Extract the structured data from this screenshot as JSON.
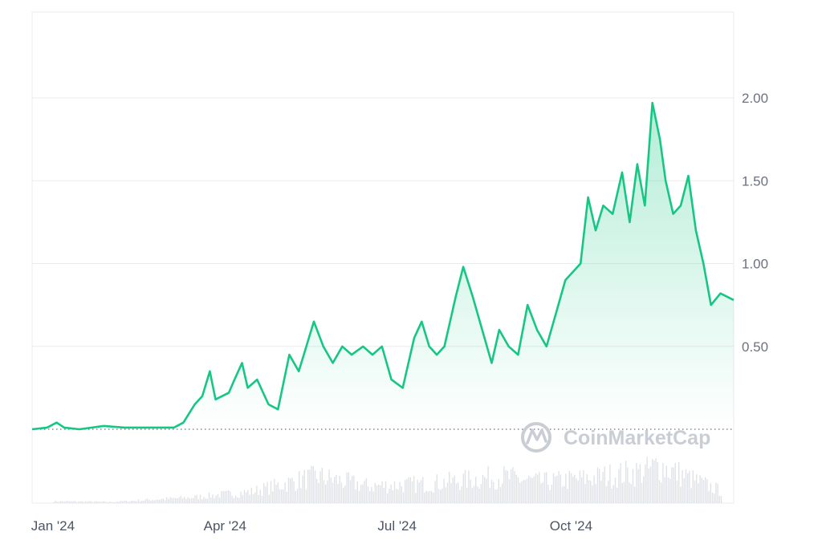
{
  "colors": {
    "line": "#16c784",
    "area_top": "#16c784",
    "grid": "#e9ebee",
    "baseline": "#6b7280",
    "volume": "#dfe2e7",
    "watermark": "#c9cdd4"
  },
  "watermark": {
    "text": "CoinMarketCap",
    "icon": "coinmarketcap-logo-icon"
  },
  "chart_data": {
    "type": "area",
    "title": "",
    "xlabel": "",
    "ylabel": "",
    "y_axis_side": "right",
    "ylim": [
      0,
      2.55
    ],
    "grid": true,
    "baseline_value": 0,
    "xlim": [
      "2023-12-21",
      "2024-12-26"
    ],
    "x_ticks": [
      {
        "label": "Jan '24",
        "date": "2024-01-01"
      },
      {
        "label": "Apr '24",
        "date": "2024-04-01"
      },
      {
        "label": "Jul '24",
        "date": "2024-07-01"
      },
      {
        "label": "Oct '24",
        "date": "2024-10-01"
      }
    ],
    "y_ticks": [
      {
        "label": "0.50",
        "value": 0.5
      },
      {
        "label": "1.00",
        "value": 1.0
      },
      {
        "label": "1.50",
        "value": 1.5
      },
      {
        "label": "2.00",
        "value": 2.0
      }
    ],
    "series": [
      {
        "type": "line",
        "points": [
          [
            "2023-12-21",
            0.0
          ],
          [
            "2023-12-29",
            0.01
          ],
          [
            "2024-01-03",
            0.04
          ],
          [
            "2024-01-07",
            0.01
          ],
          [
            "2024-01-15",
            0.0
          ],
          [
            "2024-01-28",
            0.02
          ],
          [
            "2024-02-08",
            0.01
          ],
          [
            "2024-03-05",
            0.01
          ],
          [
            "2024-03-10",
            0.04
          ],
          [
            "2024-03-16",
            0.15
          ],
          [
            "2024-03-20",
            0.2
          ],
          [
            "2024-03-24",
            0.35
          ],
          [
            "2024-03-27",
            0.18
          ],
          [
            "2024-04-03",
            0.22
          ],
          [
            "2024-04-06",
            0.3
          ],
          [
            "2024-04-10",
            0.4
          ],
          [
            "2024-04-13",
            0.25
          ],
          [
            "2024-04-18",
            0.3
          ],
          [
            "2024-04-24",
            0.15
          ],
          [
            "2024-04-29",
            0.12
          ],
          [
            "2024-05-05",
            0.45
          ],
          [
            "2024-05-10",
            0.35
          ],
          [
            "2024-05-14",
            0.5
          ],
          [
            "2024-05-18",
            0.65
          ],
          [
            "2024-05-23",
            0.5
          ],
          [
            "2024-05-28",
            0.4
          ],
          [
            "2024-06-02",
            0.5
          ],
          [
            "2024-06-07",
            0.45
          ],
          [
            "2024-06-13",
            0.5
          ],
          [
            "2024-06-18",
            0.45
          ],
          [
            "2024-06-23",
            0.5
          ],
          [
            "2024-06-28",
            0.3
          ],
          [
            "2024-07-04",
            0.25
          ],
          [
            "2024-07-10",
            0.55
          ],
          [
            "2024-07-14",
            0.65
          ],
          [
            "2024-07-18",
            0.5
          ],
          [
            "2024-07-22",
            0.45
          ],
          [
            "2024-07-26",
            0.5
          ],
          [
            "2024-08-01",
            0.8
          ],
          [
            "2024-08-05",
            0.98
          ],
          [
            "2024-08-10",
            0.8
          ],
          [
            "2024-08-15",
            0.6
          ],
          [
            "2024-08-20",
            0.4
          ],
          [
            "2024-08-24",
            0.6
          ],
          [
            "2024-08-29",
            0.5
          ],
          [
            "2024-09-03",
            0.45
          ],
          [
            "2024-09-08",
            0.75
          ],
          [
            "2024-09-13",
            0.6
          ],
          [
            "2024-09-18",
            0.5
          ],
          [
            "2024-09-23",
            0.7
          ],
          [
            "2024-09-28",
            0.9
          ],
          [
            "2024-10-02",
            0.95
          ],
          [
            "2024-10-06",
            1.0
          ],
          [
            "2024-10-10",
            1.4
          ],
          [
            "2024-10-14",
            1.2
          ],
          [
            "2024-10-18",
            1.35
          ],
          [
            "2024-10-23",
            1.3
          ],
          [
            "2024-10-28",
            1.55
          ],
          [
            "2024-11-01",
            1.25
          ],
          [
            "2024-11-05",
            1.6
          ],
          [
            "2024-11-09",
            1.35
          ],
          [
            "2024-11-13",
            1.97
          ],
          [
            "2024-11-17",
            1.75
          ],
          [
            "2024-11-20",
            1.5
          ],
          [
            "2024-11-24",
            1.3
          ],
          [
            "2024-11-28",
            1.35
          ],
          [
            "2024-12-02",
            1.53
          ],
          [
            "2024-12-06",
            1.2
          ],
          [
            "2024-12-10",
            1.0
          ],
          [
            "2024-12-14",
            0.75
          ],
          [
            "2024-12-19",
            0.82
          ],
          [
            "2024-12-26",
            0.78
          ]
        ]
      },
      {
        "type": "volume-bars",
        "note_units": "relative",
        "points": [
          [
            "2024-01-01",
            0.05
          ],
          [
            "2024-02-01",
            0.03
          ],
          [
            "2024-03-15",
            0.15
          ],
          [
            "2024-04-15",
            0.3
          ],
          [
            "2024-05-10",
            0.6
          ],
          [
            "2024-05-20",
            0.7
          ],
          [
            "2024-06-15",
            0.45
          ],
          [
            "2024-07-15",
            0.5
          ],
          [
            "2024-08-05",
            0.6
          ],
          [
            "2024-08-25",
            0.7
          ],
          [
            "2024-09-15",
            0.55
          ],
          [
            "2024-10-10",
            0.65
          ],
          [
            "2024-10-25",
            0.75
          ],
          [
            "2024-11-10",
            0.85
          ],
          [
            "2024-11-16",
            1.0
          ],
          [
            "2024-12-05",
            0.6
          ],
          [
            "2024-12-20",
            0.3
          ]
        ]
      }
    ]
  }
}
